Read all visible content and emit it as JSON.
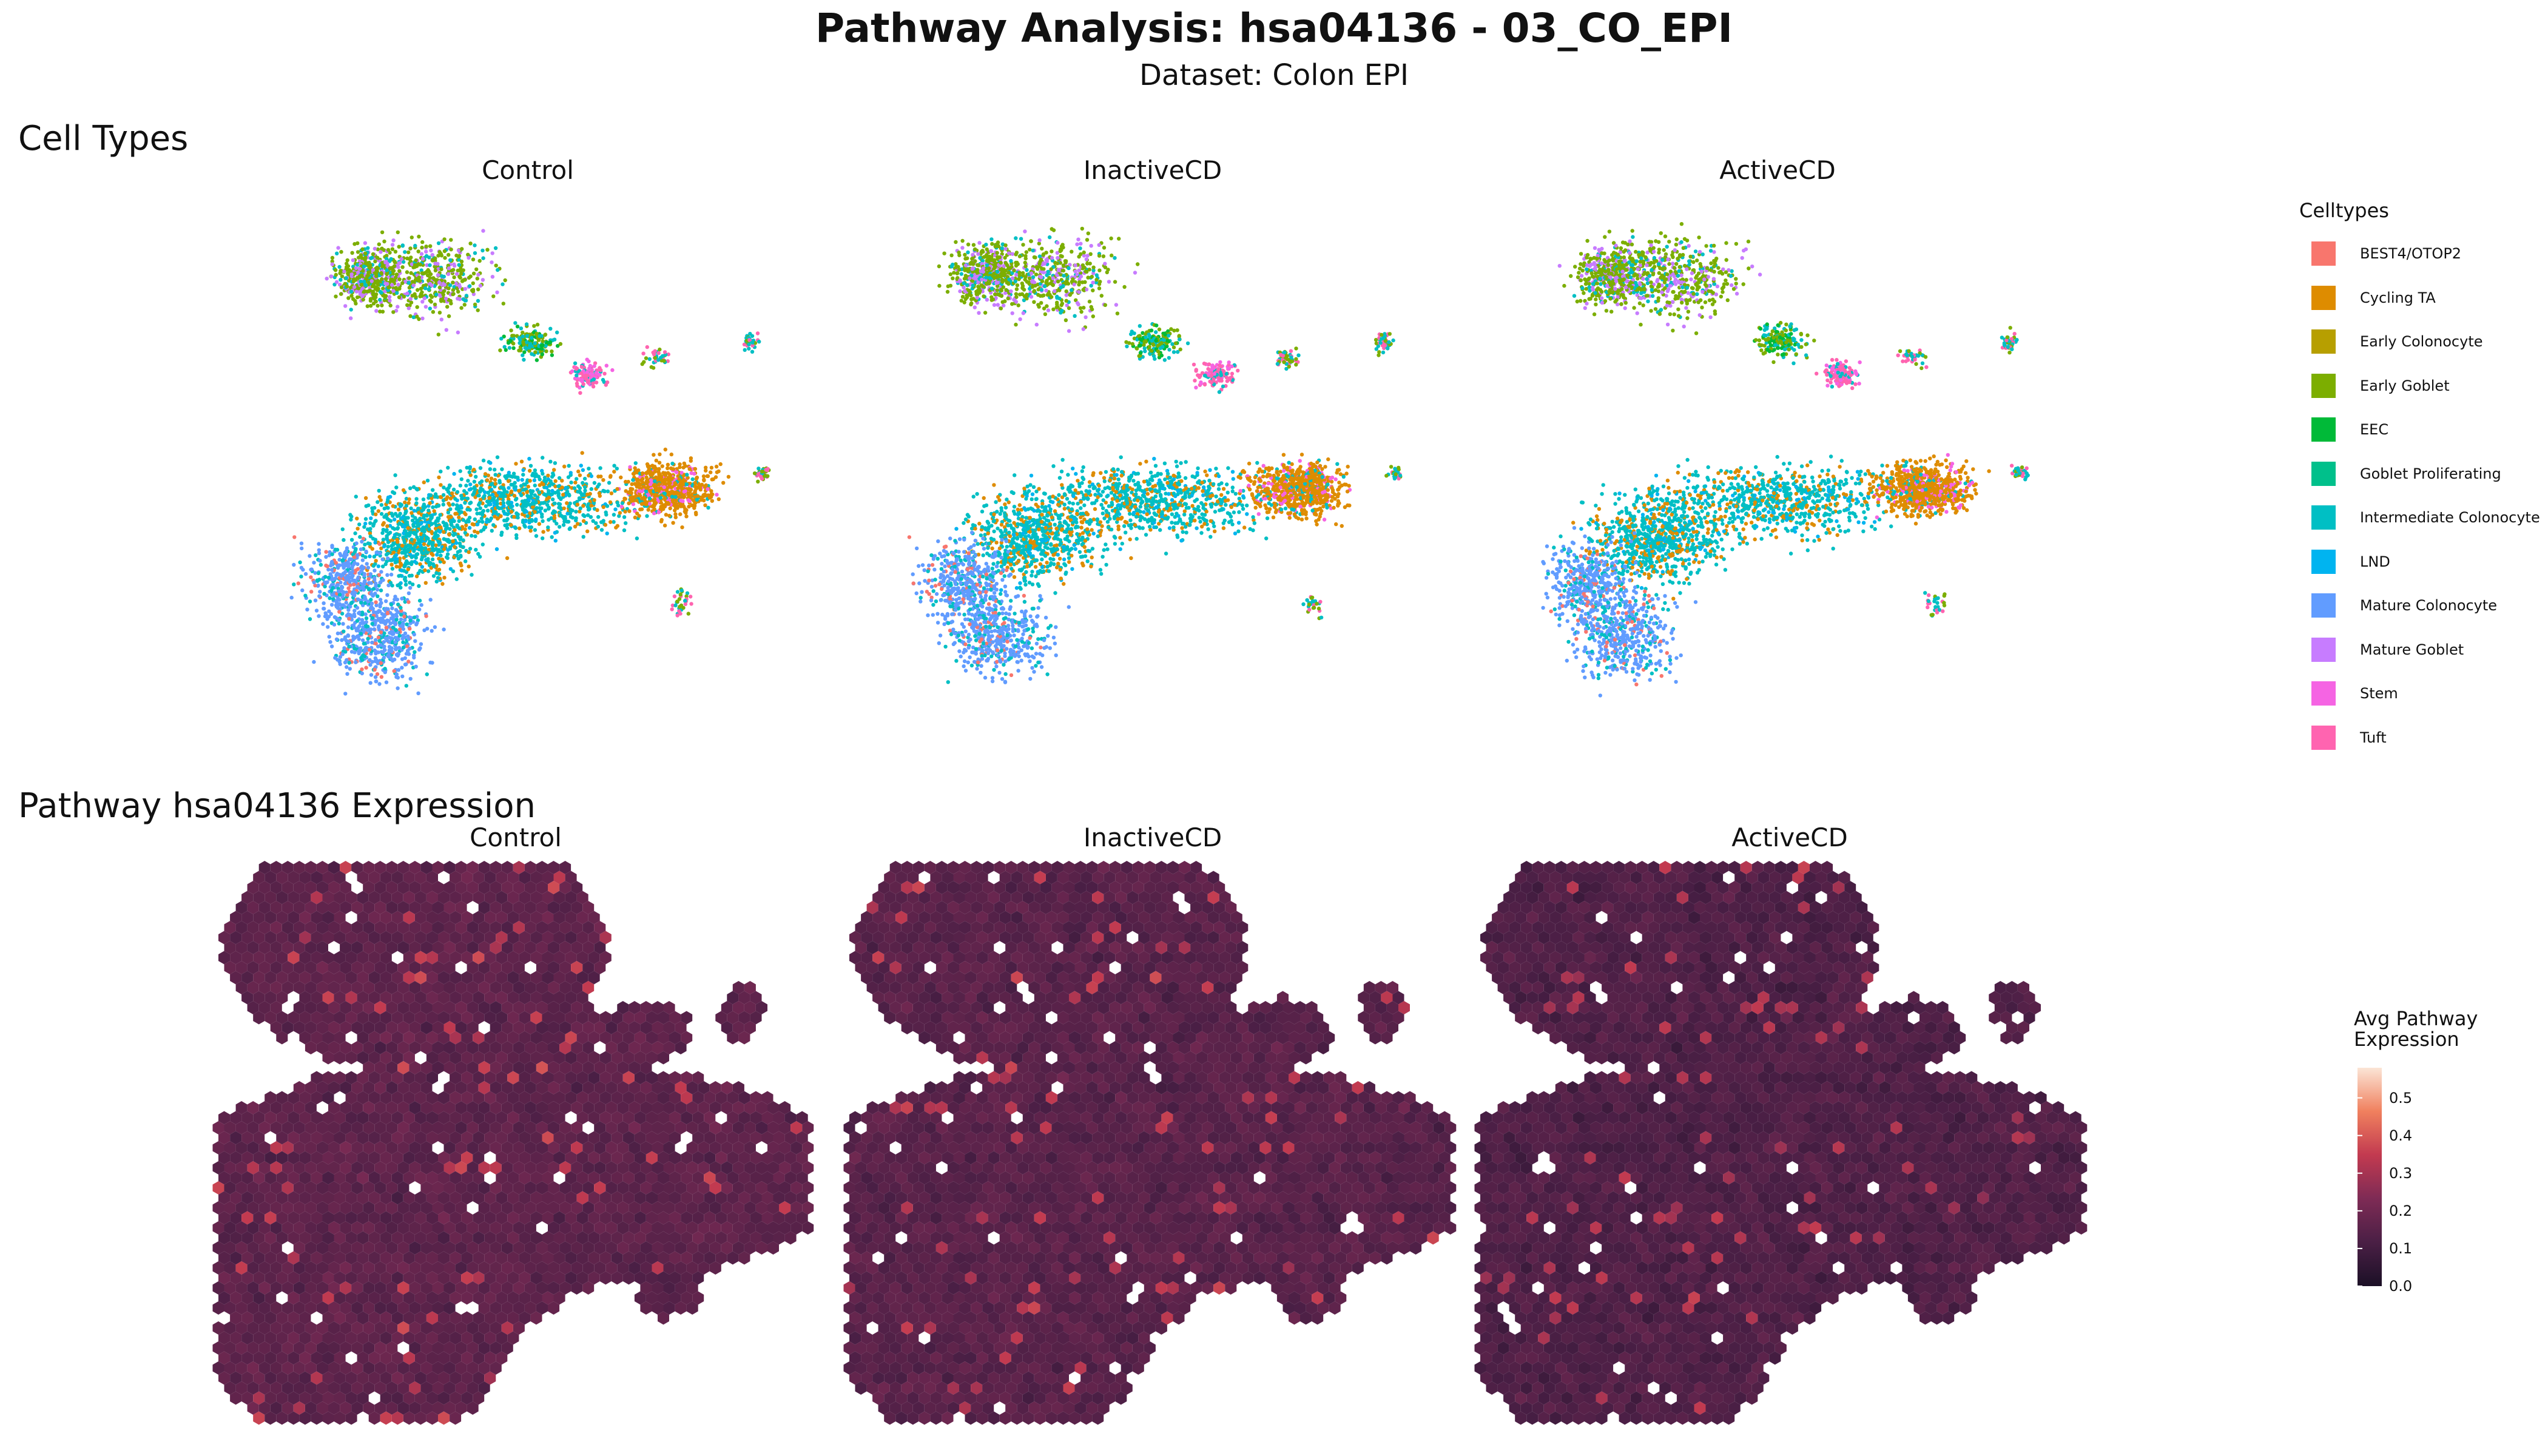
{
  "title": "Pathway Analysis: hsa04136 - 03_CO_EPI",
  "subtitle": "Dataset: Colon EPI",
  "chart_data": [
    {
      "type": "scatter",
      "section_title": "Cell Types",
      "facets": [
        "Control",
        "InactiveCD",
        "ActiveCD"
      ],
      "legend": {
        "title": "Celltypes",
        "placement": "right",
        "entries": [
          {
            "label": "BEST4/OTOP2",
            "color": "#F8766D"
          },
          {
            "label": "Cycling TA",
            "color": "#DE8C00"
          },
          {
            "label": "Early Colonocyte",
            "color": "#B79F00"
          },
          {
            "label": "Early Goblet",
            "color": "#7CAE00"
          },
          {
            "label": "EEC",
            "color": "#00BA38"
          },
          {
            "label": "Goblet Proliferating",
            "color": "#00C08B"
          },
          {
            "label": "Intermediate Colonocyte",
            "color": "#00BFC4"
          },
          {
            "label": "LND",
            "color": "#00B4F0"
          },
          {
            "label": "Mature Colonocyte",
            "color": "#619CFF"
          },
          {
            "label": "Mature Goblet",
            "color": "#C77CFF"
          },
          {
            "label": "Stem",
            "color": "#F564E3"
          },
          {
            "label": "Tuft",
            "color": "#FF64B0"
          }
        ]
      },
      "axes": "none",
      "grid": false
    },
    {
      "type": "heatmap",
      "section_title": "Pathway hsa04136 Expression",
      "facets": [
        "Control",
        "InactiveCD",
        "ActiveCD"
      ],
      "colorbar": {
        "title_line1": "Avg Pathway",
        "title_line2": "Expression",
        "ticks": [
          "0.0",
          "0.1",
          "0.2",
          "0.3",
          "0.4",
          "0.5"
        ],
        "range": [
          0,
          0.58
        ],
        "colors": [
          "#1b1026",
          "#4a1f45",
          "#7e2b55",
          "#c23a50",
          "#f0805e",
          "#fbe5d6"
        ]
      },
      "mean_level": {
        "Control": 0.16,
        "InactiveCD": 0.15,
        "ActiveCD": 0.13
      },
      "axes": "none",
      "grid": false
    }
  ]
}
